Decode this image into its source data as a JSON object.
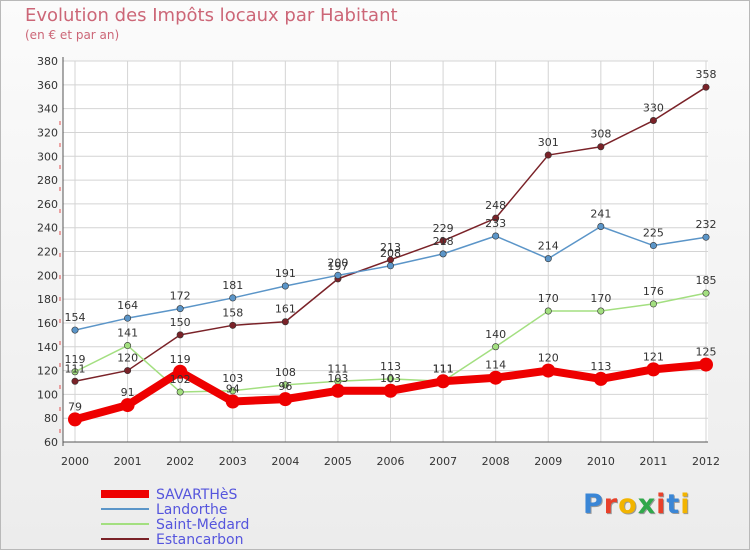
{
  "title": "Evolution des Impôts locaux par Habitant",
  "subtitle": "(en € et par an)",
  "logo_text": "Proxiti",
  "logo_colors": [
    "#3a86d6",
    "#e8402a",
    "#f2b400",
    "#30a84b",
    "#e8402a",
    "#3a86d6",
    "#f2b400"
  ],
  "chart_data": {
    "type": "line",
    "title": "Evolution des Impôts locaux par Habitant",
    "subtitle": "(en € et par an)",
    "xlabel": "",
    "ylabel": "",
    "x": [
      "2000",
      "2001",
      "2002",
      "2003",
      "2004",
      "2005",
      "2006",
      "2007",
      "2008",
      "2009",
      "2010",
      "2011",
      "2012"
    ],
    "ylim": [
      60,
      380
    ],
    "yticks": [
      "60",
      "80",
      "100",
      "120",
      "140",
      "160",
      "180",
      "200",
      "220",
      "240",
      "260",
      "280",
      "300",
      "320",
      "340",
      "360",
      "380"
    ],
    "grid": true,
    "legend_position": "bottom-left",
    "series": [
      {
        "name": "SAVARTHèS",
        "color": "#ee0000",
        "width": 8,
        "values": [
          79,
          91,
          119,
          94,
          96,
          103,
          103,
          111,
          114,
          120,
          113,
          121,
          125
        ],
        "labels": [
          "79",
          "91",
          "119",
          "94",
          "96",
          "103",
          "103",
          "111",
          "114",
          "120",
          "113",
          "121",
          "125"
        ]
      },
      {
        "name": "Landorthe",
        "color": "#5b95c8",
        "width": 1.5,
        "values": [
          154,
          164,
          172,
          181,
          191,
          200,
          208,
          218,
          233,
          214,
          241,
          225,
          232
        ],
        "labels": [
          "154",
          "164",
          "172",
          "181",
          "191",
          "200",
          "208",
          "218",
          "233",
          "214",
          "241",
          "225",
          "232"
        ]
      },
      {
        "name": "Saint-Médard",
        "color": "#a3df80",
        "width": 1.5,
        "values": [
          119,
          141,
          102,
          103,
          108,
          111,
          113,
          111,
          140,
          170,
          170,
          176,
          185
        ],
        "labels": [
          "119",
          "141",
          "102",
          "103",
          "108",
          "111",
          "113",
          "111",
          "140",
          "170",
          "170",
          "176",
          "185"
        ]
      },
      {
        "name": "Estancarbon",
        "color": "#7a2228",
        "width": 1.5,
        "values": [
          111,
          120,
          150,
          158,
          161,
          197,
          213,
          229,
          248,
          301,
          308,
          330,
          358
        ],
        "labels": [
          "111",
          "120",
          "150",
          "158",
          "161",
          "197",
          "213",
          "229",
          "248",
          "301",
          "308",
          "330",
          "358"
        ]
      }
    ]
  }
}
